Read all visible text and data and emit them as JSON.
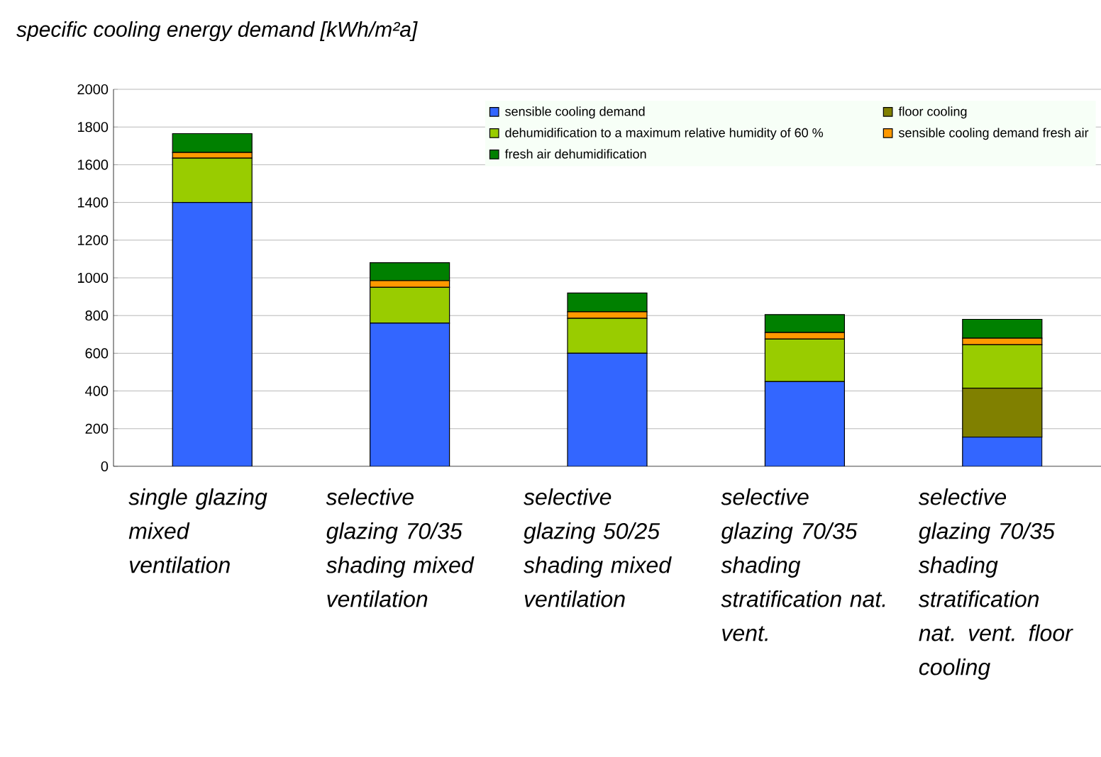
{
  "chart_data": {
    "type": "bar",
    "stacked": true,
    "title": "specific cooling energy demand [kWh/m²a]",
    "categories": [
      "single glazing mixed ventilation",
      "selective glazing 70/35 shading mixed ventilation",
      "selective glazing 50/25 shading mixed ventilation",
      "selective glazing 70/35 shading stratification nat. vent.",
      "selective glazing 70/35 shading stratification nat. vent. floor cooling"
    ],
    "series": [
      {
        "name": "sensible cooling demand",
        "color": "#3366ff",
        "values": [
          1400,
          760,
          600,
          450,
          155
        ]
      },
      {
        "name": "floor cooling",
        "color": "#808000",
        "values": [
          0,
          0,
          0,
          0,
          260
        ]
      },
      {
        "name": "dehumidification to a maximum relative humidity of 60 %",
        "color": "#99cc00",
        "values": [
          235,
          190,
          185,
          225,
          230
        ]
      },
      {
        "name": "sensible cooling demand fresh air",
        "color": "#ff9900",
        "values": [
          30,
          35,
          35,
          35,
          35
        ]
      },
      {
        "name": "fresh air dehumidification",
        "color": "#008000",
        "values": [
          100,
          95,
          100,
          95,
          100
        ]
      }
    ],
    "ylim": [
      0,
      2000
    ],
    "yticks": [
      0,
      200,
      400,
      600,
      800,
      1000,
      1200,
      1400,
      1600,
      1800,
      2000
    ],
    "grid": "y",
    "legend": "top right"
  }
}
